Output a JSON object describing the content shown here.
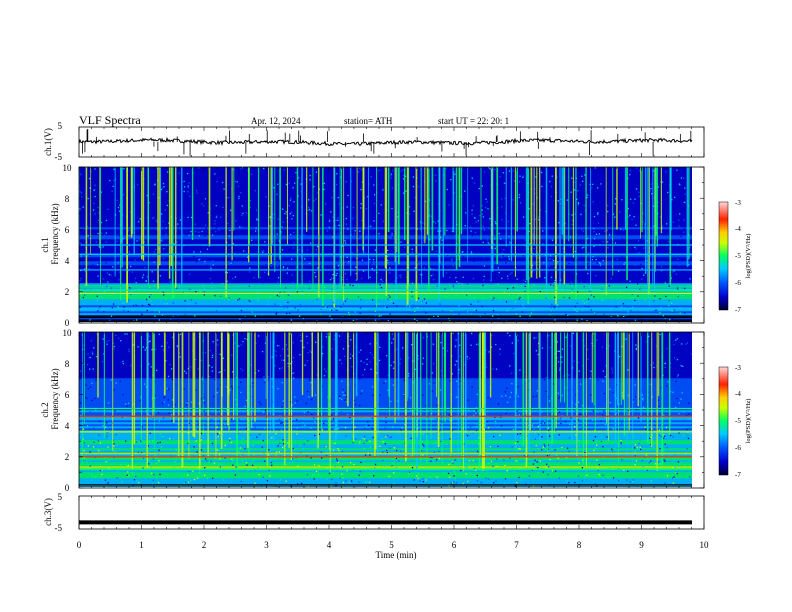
{
  "header": {
    "title": "VLF  Spectra",
    "date": "Apr. 12, 2024",
    "station": "station= ATH",
    "start": "start  UT  =   22: 20: 1"
  },
  "colors": {
    "black": "#000000",
    "colormap": [
      "#000033",
      "#0000cc",
      "#0055ff",
      "#00c8ff",
      "#00ff66",
      "#c8ff00",
      "#ffcc00",
      "#ff2200",
      "#ffc8c8"
    ]
  },
  "chart_data": [
    {
      "type": "line",
      "ylabel": "ch.1(V)",
      "ylim": [
        -5,
        5
      ],
      "yticks": [
        "5",
        "-5"
      ],
      "description_level": 1
    },
    {
      "type": "heatmap",
      "ylabel": "ch.1\nFrequency (kHz)",
      "ylabel_lines": [
        "ch.1",
        "Frequency (kHz)"
      ],
      "ylim": [
        0,
        10
      ],
      "yticks": [
        "10",
        "8",
        "6",
        "4",
        "2",
        "0"
      ],
      "colorbar": {
        "label": "log(PSD)(V²/Hz)",
        "ticks": [
          "-3",
          "-4",
          "-5",
          "-6",
          "-7"
        ]
      }
    },
    {
      "type": "heatmap",
      "ylabel_lines": [
        "ch.2",
        "Frequency (kHz)"
      ],
      "ylim": [
        0,
        10
      ],
      "yticks": [
        "10",
        "8",
        "6",
        "4",
        "2",
        "0"
      ],
      "colorbar": {
        "label": "log(PSD)(V²/Hz)",
        "ticks": [
          "-3",
          "-4",
          "-5",
          "-6",
          "-7"
        ]
      }
    },
    {
      "type": "line",
      "ylabel": "ch.3(V)",
      "ylim": [
        -5,
        5
      ],
      "yticks": [
        "5",
        "-5"
      ],
      "value": -3
    }
  ],
  "xaxis": {
    "label": "Time  (min)",
    "ticks": [
      "0",
      "1",
      "2",
      "3",
      "4",
      "5",
      "6",
      "7",
      "8",
      "9",
      "10"
    ],
    "xlim": [
      0,
      10
    ]
  }
}
